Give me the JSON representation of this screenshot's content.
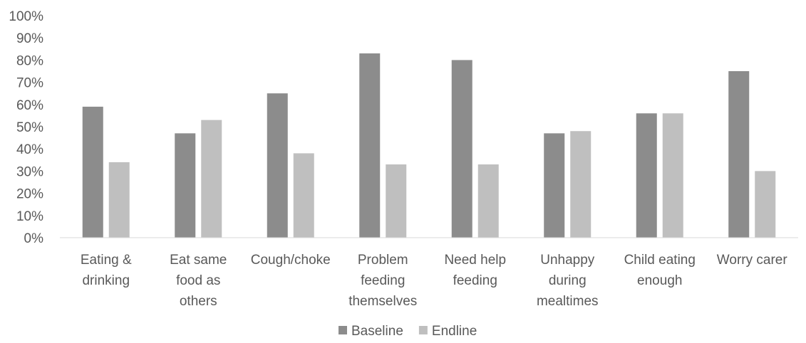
{
  "chart_data": {
    "type": "bar",
    "title": "",
    "xlabel": "",
    "ylabel": "",
    "ylim": [
      0,
      100
    ],
    "yticks": [
      "0%",
      "10%",
      "20%",
      "30%",
      "40%",
      "50%",
      "60%",
      "70%",
      "80%",
      "90%",
      "100%"
    ],
    "categories": [
      [
        "Eating &",
        "drinking"
      ],
      [
        "Eat same",
        "food as",
        "others"
      ],
      [
        "Cough/choke"
      ],
      [
        "Problem",
        "feeding",
        "themselves"
      ],
      [
        "Need help",
        "feeding"
      ],
      [
        "Unhappy",
        "during",
        "mealtimes"
      ],
      [
        "Child eating",
        "enough"
      ],
      [
        "Worry carer"
      ]
    ],
    "series": [
      {
        "name": "Baseline",
        "color": "#8c8c8c",
        "values": [
          59,
          47,
          65,
          83,
          80,
          47,
          56,
          75
        ]
      },
      {
        "name": "Endline",
        "color": "#bfbfbf",
        "values": [
          34,
          53,
          38,
          33,
          33,
          48,
          56,
          30
        ]
      }
    ],
    "grid": false,
    "legend": "bottom"
  }
}
